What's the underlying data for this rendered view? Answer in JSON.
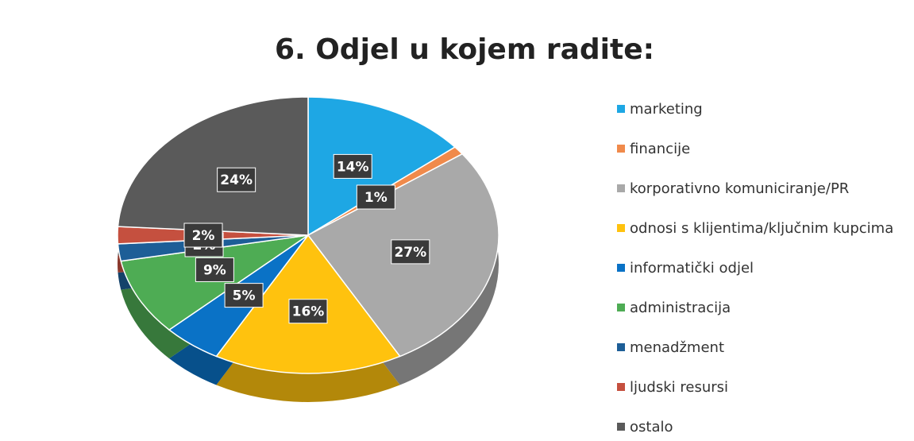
{
  "chart_data": {
    "type": "pie",
    "title": "6. Odjel u kojem radite:",
    "categories": [
      "marketing",
      "financije",
      "korporativno komuniciranje/PR",
      "odnosi s klijentima/ključnim kupcima",
      "informatički odjel",
      "administracija",
      "menadžment",
      "ljudski resursi",
      "ostalo"
    ],
    "values": [
      14,
      1,
      27,
      16,
      5,
      9,
      2,
      2,
      24
    ],
    "value_labels": [
      "14%",
      "1%",
      "27%",
      "16%",
      "5%",
      "9%",
      "2%",
      "2%",
      "24%"
    ],
    "colors": [
      "#1ea7e4",
      "#f08a4b",
      "#a9a9a9",
      "#ffc20e",
      "#0a72c6",
      "#4eac54",
      "#1d5e97",
      "#c5503f",
      "#5a5a5a"
    ],
    "legend": "right"
  }
}
